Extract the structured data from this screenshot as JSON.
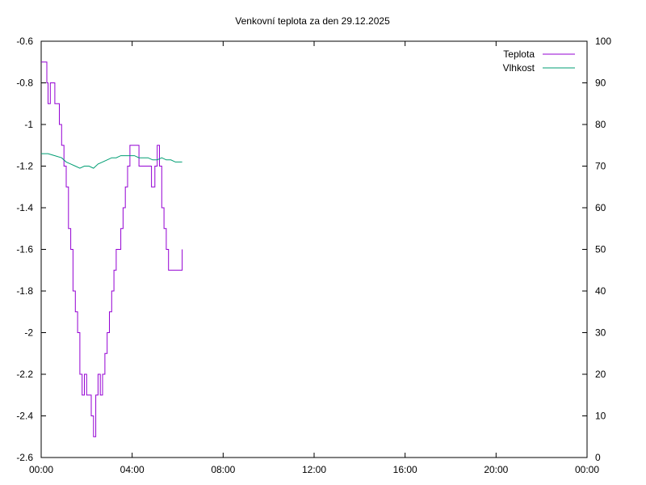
{
  "chart_data": {
    "type": "line",
    "title": "Venkovní teplota za den 29.12.2025",
    "x_ticks": [
      "00:00",
      "04:00",
      "08:00",
      "12:00",
      "16:00",
      "20:00",
      "00:00"
    ],
    "x_range_hours": [
      0,
      24
    ],
    "y_left": {
      "range": [
        -2.6,
        -0.6
      ],
      "ticks": [
        "-0.6",
        "-0.8",
        "-1",
        "-1.2",
        "-1.4",
        "-1.6",
        "-1.8",
        "-2",
        "-2.2",
        "-2.4",
        "-2.6"
      ]
    },
    "y_right": {
      "range": [
        0,
        100
      ],
      "ticks": [
        "100",
        "90",
        "80",
        "70",
        "60",
        "50",
        "40",
        "30",
        "20",
        "10",
        "0"
      ]
    },
    "grid": false,
    "legend_position": "top-right",
    "series": [
      {
        "name": "Teplota",
        "axis": "left",
        "color": "#9400d3",
        "step": true,
        "x": [
          0.0,
          0.25,
          0.3,
          0.4,
          0.6,
          0.8,
          0.9,
          1.0,
          1.1,
          1.2,
          1.3,
          1.4,
          1.5,
          1.6,
          1.7,
          1.8,
          1.9,
          2.0,
          2.1,
          2.2,
          2.3,
          2.4,
          2.5,
          2.6,
          2.7,
          2.8,
          2.9,
          3.0,
          3.1,
          3.2,
          3.3,
          3.4,
          3.5,
          3.6,
          3.7,
          3.8,
          3.9,
          4.0,
          4.1,
          4.2,
          4.3,
          4.4,
          4.5,
          4.85,
          5.0,
          5.1,
          5.2,
          5.3,
          5.4,
          5.5,
          5.6,
          5.7,
          5.9,
          6.2
        ],
        "y": [
          -0.7,
          -0.8,
          -0.9,
          -0.8,
          -0.9,
          -1.0,
          -1.1,
          -1.2,
          -1.3,
          -1.5,
          -1.6,
          -1.8,
          -1.9,
          -2.0,
          -2.2,
          -2.3,
          -2.2,
          -2.3,
          -2.3,
          -2.4,
          -2.5,
          -2.3,
          -2.2,
          -2.3,
          -2.2,
          -2.1,
          -2.0,
          -1.9,
          -1.8,
          -1.7,
          -1.6,
          -1.6,
          -1.5,
          -1.4,
          -1.3,
          -1.2,
          -1.1,
          -1.1,
          -1.1,
          -1.1,
          -1.2,
          -1.2,
          -1.2,
          -1.3,
          -1.2,
          -1.1,
          -1.2,
          -1.4,
          -1.5,
          -1.6,
          -1.7,
          -1.7,
          -1.7,
          -1.6
        ]
      },
      {
        "name": "Vlhkost",
        "axis": "right",
        "color": "#009e73",
        "step": false,
        "x": [
          0.0,
          0.3,
          0.6,
          0.9,
          1.1,
          1.3,
          1.5,
          1.7,
          1.9,
          2.1,
          2.3,
          2.5,
          2.7,
          2.9,
          3.1,
          3.3,
          3.5,
          3.7,
          3.9,
          4.1,
          4.3,
          4.5,
          4.7,
          4.9,
          5.1,
          5.3,
          5.5,
          5.7,
          5.9,
          6.1,
          6.2
        ],
        "y": [
          73,
          73,
          72.5,
          72,
          71,
          70.5,
          70,
          69.5,
          70,
          70,
          69.5,
          70.5,
          71,
          71.5,
          72,
          72,
          72.5,
          72.5,
          72.5,
          72.5,
          72,
          72,
          72,
          71.5,
          71.5,
          72,
          71.5,
          71.5,
          71,
          71,
          71
        ]
      }
    ]
  }
}
